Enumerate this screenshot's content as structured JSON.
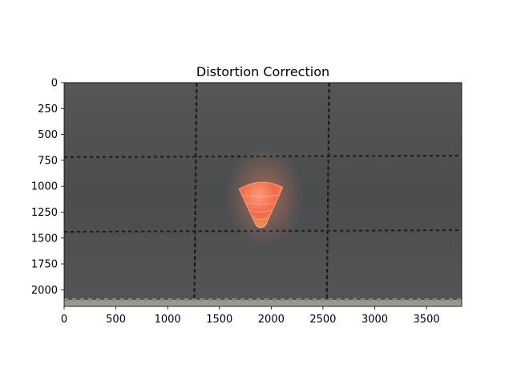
{
  "chart_data": {
    "type": "image",
    "title": "Distortion Correction",
    "xlabel": "",
    "ylabel": "",
    "xlim": [
      0,
      3840
    ],
    "ylim": [
      2160,
      0
    ],
    "x_ticks": [
      0,
      500,
      1000,
      1500,
      2000,
      2500,
      3000,
      3500
    ],
    "y_ticks": [
      0,
      250,
      500,
      750,
      1000,
      1250,
      1500,
      1750,
      2000
    ],
    "grid": false,
    "image_content": {
      "background_color": "#4a4d50",
      "tile_seam_color": "#1a1b1c",
      "vertical_seams_x": [
        1280,
        2560
      ],
      "horizontal_seams_y": [
        720,
        1440
      ],
      "object": {
        "center_x": 1900,
        "center_y": 1180,
        "width": 420,
        "height": 430,
        "color": "#f26a4a"
      }
    }
  }
}
